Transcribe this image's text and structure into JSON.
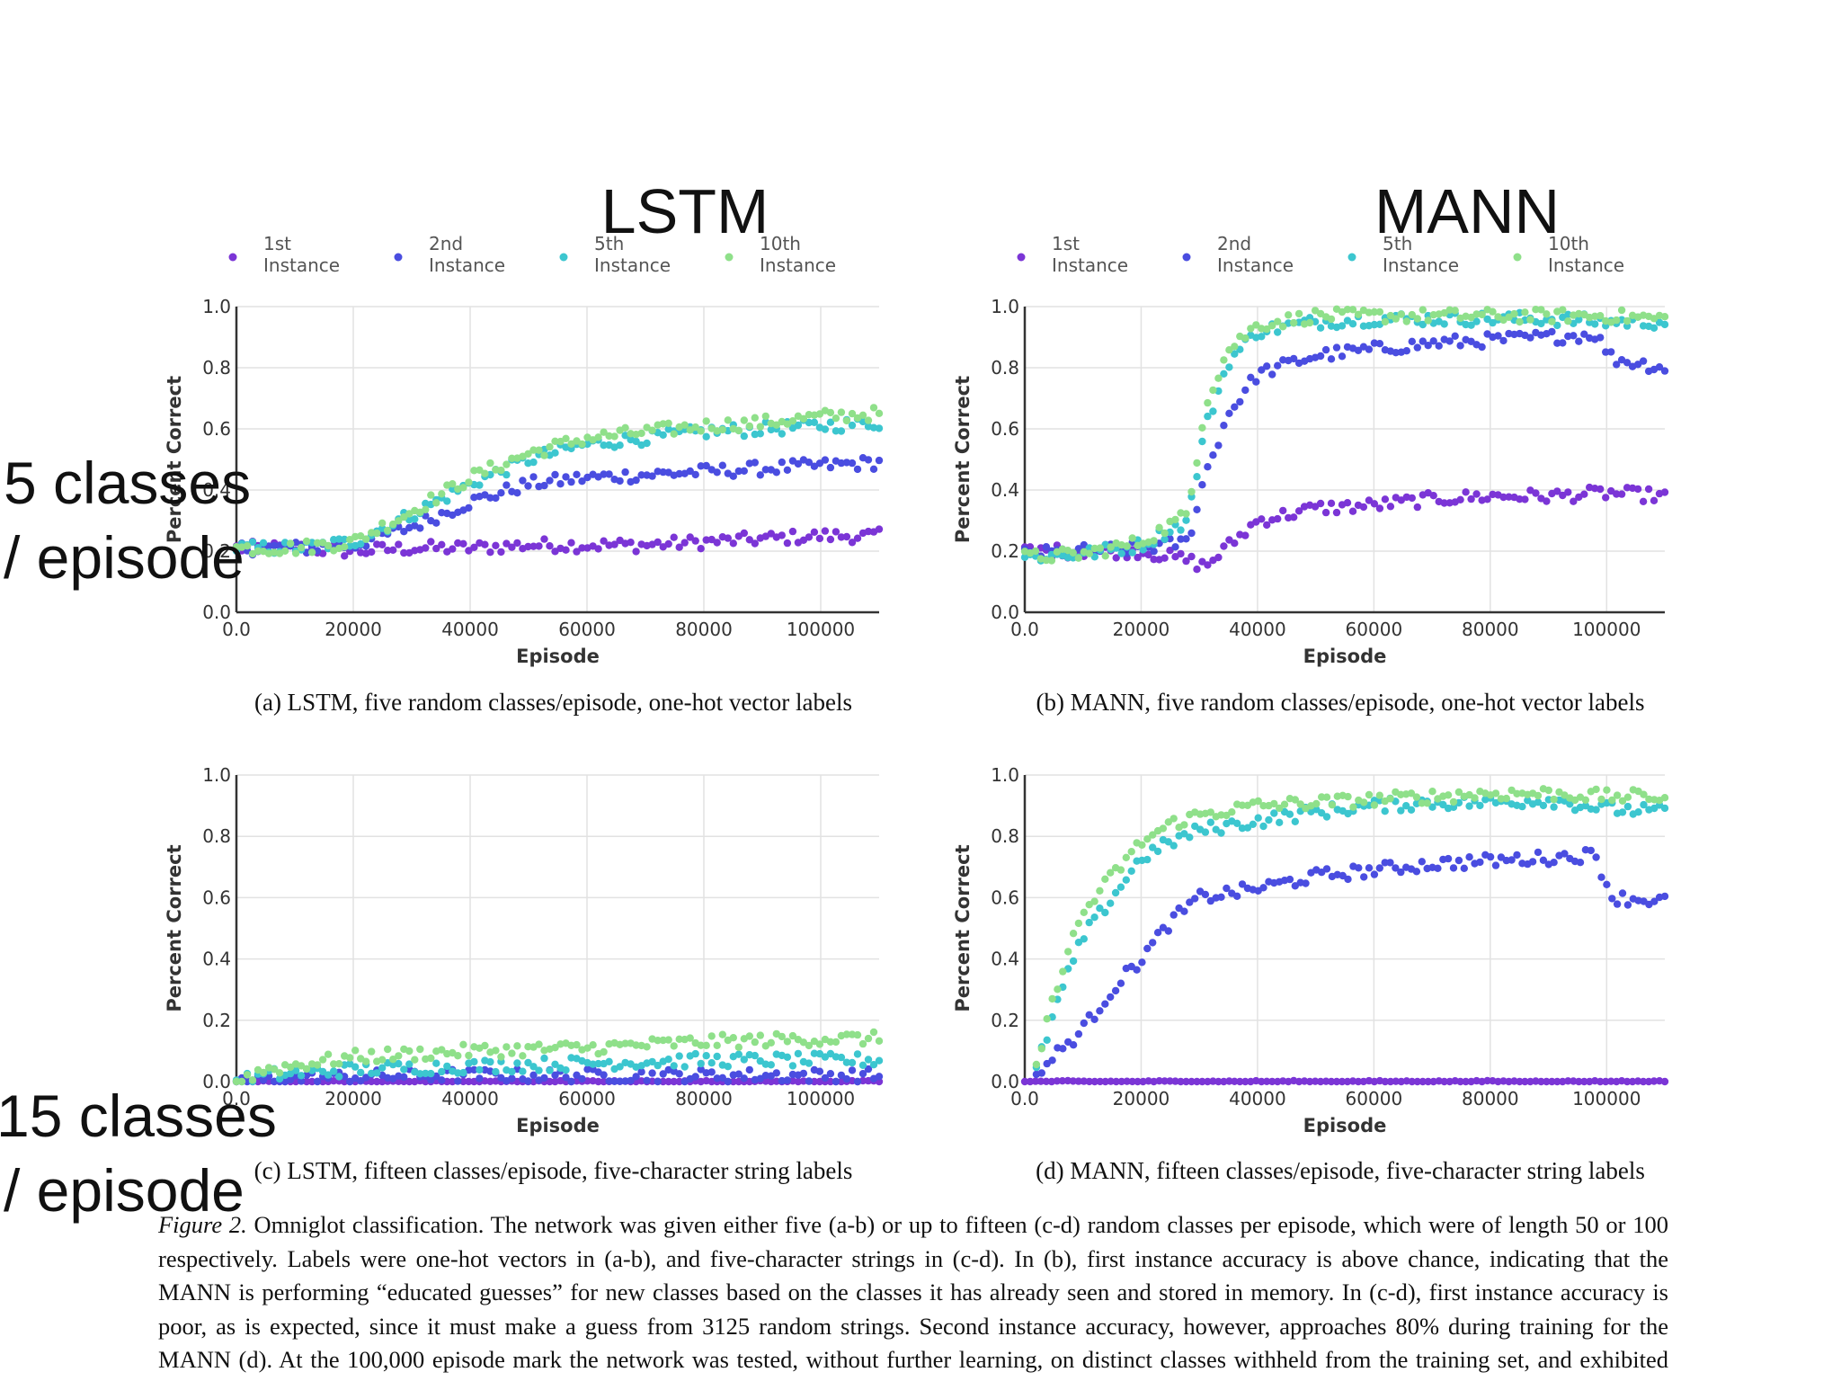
{
  "column_titles": {
    "left": "LSTM",
    "right": "MANN"
  },
  "row_labels": {
    "top": [
      "5 classes",
      "/ episode"
    ],
    "bottom": [
      "15 classes",
      "/ episode"
    ]
  },
  "figure_caption": {
    "label": "Figure 2.",
    "text": "Omniglot classification. The network was given either five (a-b) or up to fifteen (c-d) random classes per episode, which were of length 50 or 100 respectively. Labels were one-hot vectors in (a-b), and five-character strings in (c-d). In (b), first instance accuracy is above chance, indicating that the MANN is performing “educated guesses” for new classes based on the classes it has already seen and stored in memory. In (c-d), first instance accuracy is poor, as is expected, since it must make a guess from 3125 random strings. Second instance accuracy, however, approaches 80% during training for the MANN (d). At the 100,000 episode mark the network was tested, without further learning, on distinct classes withheld from the training set, and exhibited comparable performance."
  },
  "colors": {
    "1st": "#7b35d6",
    "2nd": "#4a4de0",
    "5th": "#3cc6cf",
    "10th": "#8fe08a",
    "grid": "#e2e2e2",
    "axis": "#333333"
  },
  "chart_data": [
    {
      "type": "scatter",
      "id": "a",
      "caption": "(a) LSTM, five random classes/episode, one-hot vector labels",
      "xlabel": "Episode",
      "ylabel": "Percent Correct",
      "xlim": [
        0,
        110000
      ],
      "ylim": [
        0,
        1.0
      ],
      "xticks": [
        0,
        20000,
        40000,
        60000,
        80000,
        100000
      ],
      "yticks": [
        0.0,
        0.2,
        0.4,
        0.6,
        0.8,
        1.0
      ],
      "legend": {
        "placement": "top",
        "entries": [
          "1st Instance",
          "2nd Instance",
          "5th Instance",
          "10th Instance"
        ]
      },
      "series": [
        {
          "name": "1st Instance",
          "key": "1st",
          "points": [
            [
              0,
              0.21
            ],
            [
              10000,
              0.21
            ],
            [
              20000,
              0.2
            ],
            [
              30000,
              0.21
            ],
            [
              40000,
              0.21
            ],
            [
              50000,
              0.22
            ],
            [
              60000,
              0.22
            ],
            [
              70000,
              0.22
            ],
            [
              80000,
              0.23
            ],
            [
              90000,
              0.24
            ],
            [
              100000,
              0.25
            ],
            [
              110000,
              0.25
            ]
          ]
        },
        {
          "name": "2nd Instance",
          "key": "2nd",
          "points": [
            [
              0,
              0.21
            ],
            [
              10000,
              0.21
            ],
            [
              20000,
              0.22
            ],
            [
              30000,
              0.28
            ],
            [
              40000,
              0.36
            ],
            [
              50000,
              0.42
            ],
            [
              60000,
              0.44
            ],
            [
              70000,
              0.45
            ],
            [
              80000,
              0.46
            ],
            [
              90000,
              0.47
            ],
            [
              100000,
              0.48
            ],
            [
              110000,
              0.49
            ]
          ]
        },
        {
          "name": "5th Instance",
          "key": "5th",
          "points": [
            [
              0,
              0.21
            ],
            [
              10000,
              0.21
            ],
            [
              20000,
              0.23
            ],
            [
              30000,
              0.32
            ],
            [
              40000,
              0.42
            ],
            [
              50000,
              0.5
            ],
            [
              60000,
              0.55
            ],
            [
              70000,
              0.57
            ],
            [
              80000,
              0.59
            ],
            [
              90000,
              0.6
            ],
            [
              100000,
              0.61
            ],
            [
              110000,
              0.62
            ]
          ]
        },
        {
          "name": "10th Instance",
          "key": "10th",
          "points": [
            [
              0,
              0.21
            ],
            [
              10000,
              0.21
            ],
            [
              20000,
              0.23
            ],
            [
              30000,
              0.33
            ],
            [
              40000,
              0.44
            ],
            [
              50000,
              0.52
            ],
            [
              60000,
              0.57
            ],
            [
              70000,
              0.59
            ],
            [
              80000,
              0.61
            ],
            [
              90000,
              0.62
            ],
            [
              100000,
              0.64
            ],
            [
              110000,
              0.65
            ]
          ]
        }
      ]
    },
    {
      "type": "scatter",
      "id": "b",
      "caption": "(b) MANN, five random classes/episode, one-hot vector labels",
      "xlabel": "Episode",
      "ylabel": "Percent Correct",
      "xlim": [
        0,
        110000
      ],
      "ylim": [
        0,
        1.0
      ],
      "xticks": [
        0,
        20000,
        40000,
        60000,
        80000,
        100000
      ],
      "yticks": [
        0.0,
        0.2,
        0.4,
        0.6,
        0.8,
        1.0
      ],
      "legend": {
        "placement": "top",
        "entries": [
          "1st Instance",
          "2nd Instance",
          "5th Instance",
          "10th Instance"
        ]
      },
      "series": [
        {
          "name": "1st Instance",
          "key": "1st",
          "points": [
            [
              0,
              0.2
            ],
            [
              10000,
              0.2
            ],
            [
              20000,
              0.2
            ],
            [
              28000,
              0.17
            ],
            [
              31000,
              0.15
            ],
            [
              40000,
              0.3
            ],
            [
              50000,
              0.34
            ],
            [
              60000,
              0.35
            ],
            [
              70000,
              0.37
            ],
            [
              80000,
              0.38
            ],
            [
              90000,
              0.38
            ],
            [
              100000,
              0.39
            ],
            [
              110000,
              0.38
            ]
          ]
        },
        {
          "name": "2nd Instance",
          "key": "2nd",
          "points": [
            [
              0,
              0.19
            ],
            [
              10000,
              0.2
            ],
            [
              20000,
              0.21
            ],
            [
              28000,
              0.23
            ],
            [
              31000,
              0.45
            ],
            [
              35000,
              0.65
            ],
            [
              40000,
              0.78
            ],
            [
              50000,
              0.84
            ],
            [
              60000,
              0.86
            ],
            [
              70000,
              0.88
            ],
            [
              80000,
              0.89
            ],
            [
              90000,
              0.9
            ],
            [
              98000,
              0.91
            ],
            [
              101000,
              0.83
            ],
            [
              110000,
              0.8
            ]
          ]
        },
        {
          "name": "5th Instance",
          "key": "5th",
          "points": [
            [
              0,
              0.18
            ],
            [
              10000,
              0.19
            ],
            [
              20000,
              0.22
            ],
            [
              28000,
              0.3
            ],
            [
              31000,
              0.6
            ],
            [
              35000,
              0.82
            ],
            [
              40000,
              0.92
            ],
            [
              50000,
              0.95
            ],
            [
              60000,
              0.96
            ],
            [
              70000,
              0.96
            ],
            [
              80000,
              0.96
            ],
            [
              90000,
              0.96
            ],
            [
              100000,
              0.95
            ],
            [
              110000,
              0.95
            ]
          ]
        },
        {
          "name": "10th Instance",
          "key": "10th",
          "points": [
            [
              0,
              0.18
            ],
            [
              10000,
              0.19
            ],
            [
              20000,
              0.23
            ],
            [
              28000,
              0.32
            ],
            [
              31000,
              0.68
            ],
            [
              35000,
              0.86
            ],
            [
              40000,
              0.94
            ],
            [
              50000,
              0.97
            ],
            [
              60000,
              0.97
            ],
            [
              70000,
              0.97
            ],
            [
              80000,
              0.97
            ],
            [
              90000,
              0.97
            ],
            [
              100000,
              0.97
            ],
            [
              110000,
              0.96
            ]
          ]
        }
      ]
    },
    {
      "type": "scatter",
      "id": "c",
      "caption": "(c) LSTM, fifteen classes/episode, five-character string labels",
      "xlabel": "Episode",
      "ylabel": "Percent Correct",
      "xlim": [
        0,
        110000
      ],
      "ylim": [
        0,
        1.0
      ],
      "xticks": [
        0,
        20000,
        40000,
        60000,
        80000,
        100000
      ],
      "yticks": [
        0.0,
        0.2,
        0.4,
        0.6,
        0.8,
        1.0
      ],
      "series": [
        {
          "name": "1st Instance",
          "key": "1st",
          "points": [
            [
              0,
              0.0
            ],
            [
              10000,
              0.0
            ],
            [
              30000,
              0.0
            ],
            [
              60000,
              0.0
            ],
            [
              90000,
              0.0
            ],
            [
              110000,
              0.0
            ]
          ]
        },
        {
          "name": "2nd Instance",
          "key": "2nd",
          "points": [
            [
              0,
              0.0
            ],
            [
              10000,
              0.01
            ],
            [
              30000,
              0.02
            ],
            [
              60000,
              0.02
            ],
            [
              90000,
              0.02
            ],
            [
              110000,
              0.02
            ]
          ]
        },
        {
          "name": "5th Instance",
          "key": "5th",
          "points": [
            [
              0,
              0.0
            ],
            [
              5000,
              0.02
            ],
            [
              20000,
              0.04
            ],
            [
              40000,
              0.05
            ],
            [
              60000,
              0.06
            ],
            [
              80000,
              0.07
            ],
            [
              100000,
              0.07
            ],
            [
              110000,
              0.07
            ]
          ]
        },
        {
          "name": "10th Instance",
          "key": "10th",
          "points": [
            [
              0,
              0.0
            ],
            [
              5000,
              0.04
            ],
            [
              20000,
              0.08
            ],
            [
              40000,
              0.1
            ],
            [
              60000,
              0.11
            ],
            [
              80000,
              0.13
            ],
            [
              100000,
              0.14
            ],
            [
              110000,
              0.14
            ]
          ]
        }
      ]
    },
    {
      "type": "scatter",
      "id": "d",
      "caption": "(d) MANN, fifteen classes/episode, five-character string labels",
      "xlabel": "Episode",
      "ylabel": "Percent Correct",
      "xlim": [
        0,
        110000
      ],
      "ylim": [
        0,
        1.0
      ],
      "xticks": [
        0,
        20000,
        40000,
        60000,
        80000,
        100000
      ],
      "yticks": [
        0.0,
        0.2,
        0.4,
        0.6,
        0.8,
        1.0
      ],
      "series": [
        {
          "name": "1st Instance",
          "key": "1st",
          "points": [
            [
              0,
              0.0
            ],
            [
              20000,
              0.0
            ],
            [
              50000,
              0.0
            ],
            [
              80000,
              0.0
            ],
            [
              110000,
              0.0
            ]
          ]
        },
        {
          "name": "2nd Instance",
          "key": "2nd",
          "points": [
            [
              2000,
              0.02
            ],
            [
              6000,
              0.1
            ],
            [
              10000,
              0.17
            ],
            [
              15000,
              0.3
            ],
            [
              20000,
              0.4
            ],
            [
              25000,
              0.52
            ],
            [
              30000,
              0.6
            ],
            [
              40000,
              0.63
            ],
            [
              50000,
              0.67
            ],
            [
              60000,
              0.69
            ],
            [
              70000,
              0.71
            ],
            [
              80000,
              0.72
            ],
            [
              90000,
              0.73
            ],
            [
              98000,
              0.74
            ],
            [
              101000,
              0.6
            ],
            [
              110000,
              0.59
            ]
          ]
        },
        {
          "name": "5th Instance",
          "key": "5th",
          "points": [
            [
              2000,
              0.04
            ],
            [
              6000,
              0.28
            ],
            [
              10000,
              0.47
            ],
            [
              15000,
              0.6
            ],
            [
              20000,
              0.73
            ],
            [
              25000,
              0.78
            ],
            [
              30000,
              0.82
            ],
            [
              40000,
              0.85
            ],
            [
              50000,
              0.88
            ],
            [
              60000,
              0.9
            ],
            [
              70000,
              0.91
            ],
            [
              80000,
              0.91
            ],
            [
              90000,
              0.92
            ],
            [
              100000,
              0.89
            ],
            [
              110000,
              0.88
            ]
          ]
        },
        {
          "name": "10th Instance",
          "key": "10th",
          "points": [
            [
              2000,
              0.05
            ],
            [
              6000,
              0.35
            ],
            [
              10000,
              0.55
            ],
            [
              15000,
              0.67
            ],
            [
              20000,
              0.78
            ],
            [
              25000,
              0.84
            ],
            [
              30000,
              0.87
            ],
            [
              40000,
              0.9
            ],
            [
              50000,
              0.91
            ],
            [
              60000,
              0.92
            ],
            [
              70000,
              0.93
            ],
            [
              80000,
              0.94
            ],
            [
              90000,
              0.94
            ],
            [
              100000,
              0.93
            ],
            [
              110000,
              0.93
            ]
          ]
        }
      ]
    }
  ]
}
